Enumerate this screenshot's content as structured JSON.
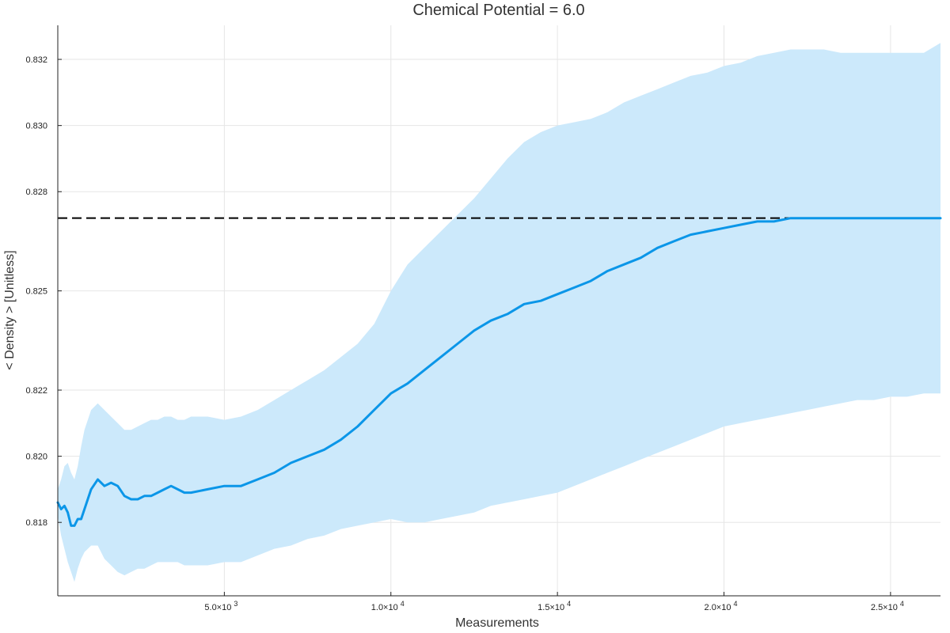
{
  "chart_data": {
    "type": "line",
    "title": "Chemical Potential = 6.0",
    "xlabel": "Measurements",
    "ylabel": "< Density > [Unitless]",
    "xlim": [
      0,
      26500
    ],
    "ylim": [
      0.81578,
      0.83303
    ],
    "x_ticks": [
      {
        "value": 5000,
        "label": "5.0×10",
        "exp": "3"
      },
      {
        "value": 10000,
        "label": "1.0×10",
        "exp": "4"
      },
      {
        "value": 15000,
        "label": "1.5×10",
        "exp": "4"
      },
      {
        "value": 20000,
        "label": "2.0×10",
        "exp": "4"
      },
      {
        "value": 25000,
        "label": "2.5×10",
        "exp": "4"
      }
    ],
    "y_ticks": [
      {
        "value": 0.818,
        "label": "0.818"
      },
      {
        "value": 0.82,
        "label": "0.820"
      },
      {
        "value": 0.822,
        "label": "0.822"
      },
      {
        "value": 0.825,
        "label": "0.825"
      },
      {
        "value": 0.828,
        "label": "0.828"
      },
      {
        "value": 0.83,
        "label": "0.830"
      },
      {
        "value": 0.832,
        "label": "0.832"
      }
    ],
    "grid": true,
    "reference_line": {
      "y": 0.8272,
      "style": "dashed",
      "color": "#000000"
    },
    "series": [
      {
        "line_color": "#0b96e8",
        "band_color": "#cce9fb",
        "x": [
          0,
          100,
          200,
          300,
          400,
          500,
          600,
          700,
          800,
          1000,
          1200,
          1400,
          1600,
          1800,
          2000,
          2200,
          2400,
          2600,
          2800,
          3000,
          3200,
          3400,
          3600,
          3800,
          4000,
          4500,
          5000,
          5500,
          6000,
          6500,
          7000,
          7500,
          8000,
          8500,
          9000,
          9500,
          10000,
          10500,
          11000,
          11500,
          12000,
          12500,
          13000,
          13500,
          14000,
          14500,
          15000,
          15500,
          16000,
          16500,
          17000,
          17500,
          18000,
          18500,
          19000,
          19500,
          20000,
          20500,
          21000,
          21500,
          22000,
          22500,
          23000,
          23500,
          24000,
          24500,
          25000,
          25500,
          26000,
          26500
        ],
        "y": [
          0.8186,
          0.8184,
          0.8185,
          0.8183,
          0.8179,
          0.8179,
          0.8181,
          0.8181,
          0.8184,
          0.819,
          0.8193,
          0.8191,
          0.8192,
          0.8191,
          0.8188,
          0.8187,
          0.8187,
          0.8188,
          0.8188,
          0.8189,
          0.819,
          0.8191,
          0.819,
          0.8189,
          0.8189,
          0.819,
          0.8191,
          0.8191,
          0.8193,
          0.8195,
          0.8198,
          0.82,
          0.8202,
          0.8205,
          0.8209,
          0.8214,
          0.8219,
          0.8222,
          0.8226,
          0.823,
          0.8234,
          0.8238,
          0.8241,
          0.8243,
          0.8246,
          0.8247,
          0.8249,
          0.8251,
          0.8253,
          0.8256,
          0.8258,
          0.826,
          0.8263,
          0.8265,
          0.8267,
          0.8268,
          0.8269,
          0.827,
          0.8271,
          0.8271,
          0.8272,
          0.8272,
          0.8272,
          0.8272,
          0.8272,
          0.8272,
          0.8272,
          0.8272,
          0.8272,
          0.8272
        ],
        "upper": [
          0.819,
          0.8193,
          0.8197,
          0.8198,
          0.8195,
          0.8193,
          0.8197,
          0.8203,
          0.8208,
          0.8214,
          0.8216,
          0.8214,
          0.8212,
          0.821,
          0.8208,
          0.8208,
          0.8209,
          0.821,
          0.8211,
          0.8211,
          0.8212,
          0.8212,
          0.8211,
          0.8211,
          0.8212,
          0.8212,
          0.8211,
          0.8212,
          0.8214,
          0.8217,
          0.822,
          0.8223,
          0.8226,
          0.823,
          0.8234,
          0.824,
          0.825,
          0.8258,
          0.8263,
          0.8268,
          0.8273,
          0.8278,
          0.8284,
          0.829,
          0.8295,
          0.8298,
          0.83,
          0.8301,
          0.8302,
          0.8304,
          0.8307,
          0.8309,
          0.8311,
          0.8313,
          0.8315,
          0.8316,
          0.8318,
          0.8319,
          0.8321,
          0.8322,
          0.8323,
          0.8323,
          0.8323,
          0.8322,
          0.8322,
          0.8322,
          0.8322,
          0.8322,
          0.8322,
          0.8325
        ],
        "lower": [
          0.8182,
          0.8176,
          0.8172,
          0.8168,
          0.8165,
          0.8162,
          0.8166,
          0.8169,
          0.8171,
          0.8173,
          0.8173,
          0.8169,
          0.8167,
          0.8165,
          0.8164,
          0.8165,
          0.8166,
          0.8166,
          0.8167,
          0.8168,
          0.8168,
          0.8168,
          0.8168,
          0.8167,
          0.8167,
          0.8167,
          0.8168,
          0.8168,
          0.817,
          0.8172,
          0.8173,
          0.8175,
          0.8176,
          0.8178,
          0.8179,
          0.818,
          0.8181,
          0.818,
          0.818,
          0.8181,
          0.8182,
          0.8183,
          0.8185,
          0.8186,
          0.8187,
          0.8188,
          0.8189,
          0.8191,
          0.8193,
          0.8195,
          0.8197,
          0.8199,
          0.8201,
          0.8203,
          0.8205,
          0.8207,
          0.8209,
          0.821,
          0.8211,
          0.8212,
          0.8213,
          0.8214,
          0.8215,
          0.8216,
          0.8217,
          0.8217,
          0.8218,
          0.8218,
          0.8219,
          0.8219
        ]
      }
    ]
  }
}
